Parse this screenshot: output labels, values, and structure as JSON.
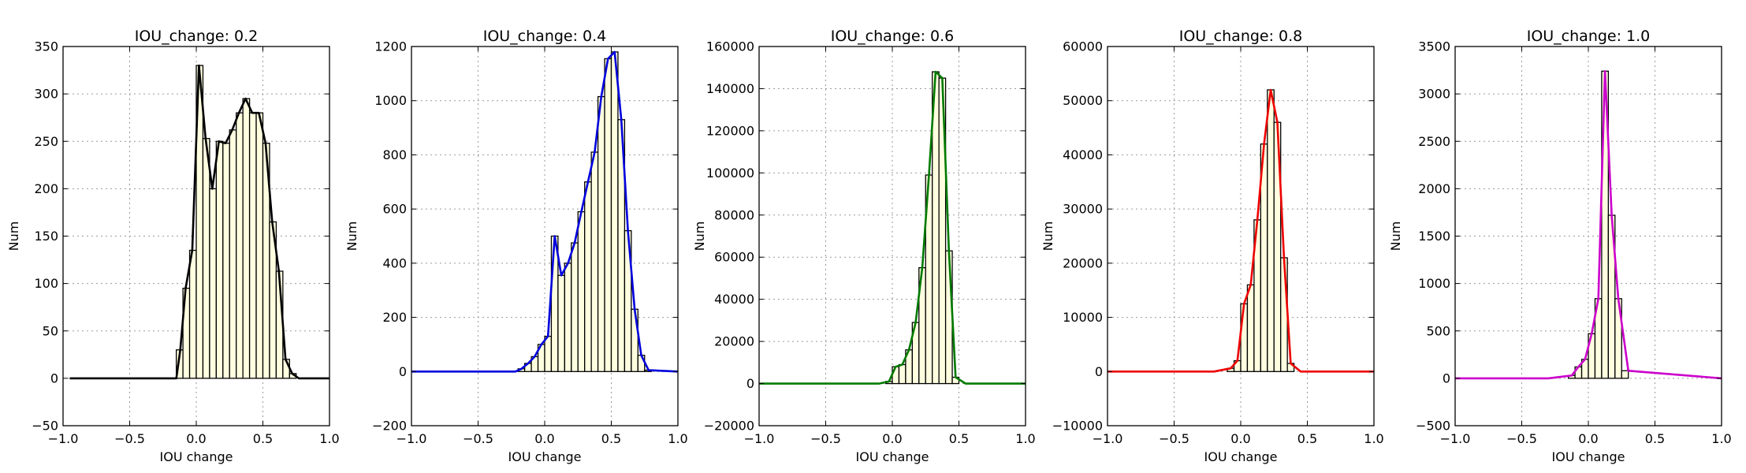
{
  "colors": {
    "bar_fill": "#ffffe0",
    "bar_edge": "#000000",
    "grid": "#9a9a9a"
  },
  "chart_data": [
    {
      "type": "bar",
      "title": "IOU_change: 0.2",
      "xlabel": "IOU change",
      "ylabel": "Num",
      "xlim": [
        -1.0,
        1.0
      ],
      "ylim": [
        -50,
        350
      ],
      "xticks": [
        -1.0,
        -0.5,
        0.0,
        0.5,
        1.0
      ],
      "xtick_labels": [
        "−1.0",
        "−0.5",
        "0.0",
        "0.5",
        "1.0"
      ],
      "yticks": [
        -50,
        0,
        50,
        100,
        150,
        200,
        250,
        300,
        350
      ],
      "ytick_labels": [
        "−50",
        "0",
        "50",
        "100",
        "150",
        "200",
        "250",
        "300",
        "350"
      ],
      "grid": true,
      "line_color": "#000000",
      "bins": {
        "start": -0.15,
        "width": 0.05
      },
      "values": [
        30,
        95,
        135,
        330,
        253,
        200,
        250,
        248,
        262,
        280,
        295,
        280,
        280,
        248,
        165,
        113,
        20,
        5
      ],
      "curve": {
        "x": [
          -0.95,
          -0.15,
          -0.12,
          -0.08,
          -0.03,
          0.02,
          0.07,
          0.12,
          0.17,
          0.22,
          0.27,
          0.32,
          0.37,
          0.42,
          0.47,
          0.52,
          0.57,
          0.62,
          0.67,
          0.72,
          0.77,
          0.82,
          0.87,
          1.0
        ],
        "y": [
          0,
          0,
          30,
          95,
          135,
          330,
          253,
          200,
          250,
          248,
          262,
          280,
          295,
          280,
          280,
          248,
          165,
          113,
          20,
          5,
          0,
          0,
          0,
          0
        ]
      }
    },
    {
      "type": "bar",
      "title": "IOU_change: 0.4",
      "xlabel": "IOU change",
      "ylabel": "Num",
      "xlim": [
        -1.0,
        1.0
      ],
      "ylim": [
        -200,
        1200
      ],
      "xticks": [
        -1.0,
        -0.5,
        0.0,
        0.5,
        1.0
      ],
      "xtick_labels": [
        "−1.0",
        "−0.5",
        "0.0",
        "0.5",
        "1.0"
      ],
      "yticks": [
        -200,
        0,
        200,
        400,
        600,
        800,
        1000,
        1200
      ],
      "ytick_labels": [
        "−200",
        "0",
        "200",
        "400",
        "600",
        "800",
        "1000",
        "1200"
      ],
      "grid": true,
      "line_color": "#0000dd",
      "bins": {
        "start": -0.2,
        "width": 0.05
      },
      "values": [
        10,
        30,
        55,
        100,
        130,
        500,
        355,
        400,
        475,
        590,
        700,
        810,
        1015,
        1155,
        1180,
        930,
        520,
        230,
        60,
        5
      ],
      "curve": {
        "x": [
          -1.0,
          -0.22,
          -0.175,
          -0.125,
          -0.075,
          -0.025,
          0.025,
          0.075,
          0.125,
          0.175,
          0.225,
          0.275,
          0.325,
          0.375,
          0.425,
          0.475,
          0.525,
          0.575,
          0.625,
          0.675,
          0.725,
          0.78,
          1.0
        ],
        "y": [
          0,
          0,
          10,
          30,
          55,
          100,
          130,
          500,
          355,
          400,
          475,
          590,
          700,
          810,
          1015,
          1155,
          1180,
          930,
          520,
          230,
          60,
          5,
          0
        ]
      }
    },
    {
      "type": "bar",
      "title": "IOU_change: 0.6",
      "xlabel": "IOU change",
      "ylabel": "Num",
      "xlim": [
        -1.0,
        1.0
      ],
      "ylim": [
        -20000,
        160000
      ],
      "xticks": [
        -1.0,
        -0.5,
        0.0,
        0.5,
        1.0
      ],
      "xtick_labels": [
        "−1.0",
        "−0.5",
        "0.0",
        "0.5",
        "1.0"
      ],
      "yticks": [
        -20000,
        0,
        20000,
        40000,
        60000,
        80000,
        100000,
        120000,
        140000,
        160000
      ],
      "ytick_labels": [
        "−20000",
        "0",
        "20000",
        "40000",
        "60000",
        "80000",
        "100000",
        "120000",
        "140000",
        "160000"
      ],
      "grid": true,
      "line_color": "#007a00",
      "bins": {
        "start": -0.05,
        "width": 0.05
      },
      "values": [
        1000,
        8000,
        9000,
        16000,
        29000,
        55000,
        99000,
        148000,
        145000,
        63000,
        3000
      ],
      "curve": {
        "x": [
          -1.0,
          -0.1,
          -0.025,
          0.025,
          0.075,
          0.125,
          0.175,
          0.225,
          0.275,
          0.325,
          0.375,
          0.425,
          0.475,
          0.55,
          1.0
        ],
        "y": [
          0,
          0,
          1000,
          8000,
          9000,
          16000,
          29000,
          55000,
          99000,
          148000,
          145000,
          63000,
          3000,
          0,
          0
        ]
      }
    },
    {
      "type": "bar",
      "title": "IOU_change: 0.8",
      "xlabel": "IOU change",
      "ylabel": "Num",
      "xlim": [
        -1.0,
        1.0
      ],
      "ylim": [
        -10000,
        60000
      ],
      "xticks": [
        -1.0,
        -0.5,
        0.0,
        0.5,
        1.0
      ],
      "xtick_labels": [
        "−1.0",
        "−0.5",
        "0.0",
        "0.5",
        "1.0"
      ],
      "yticks": [
        -10000,
        0,
        10000,
        20000,
        30000,
        40000,
        50000,
        60000
      ],
      "ytick_labels": [
        "−10000",
        "0",
        "10000",
        "20000",
        "30000",
        "40000",
        "50000",
        "60000"
      ],
      "grid": true,
      "line_color": "#ee0000",
      "bins": {
        "start": -0.1,
        "width": 0.05
      },
      "values": [
        600,
        2000,
        12500,
        16000,
        28000,
        42000,
        52000,
        46000,
        21000,
        1500
      ],
      "curve": {
        "x": [
          -1.0,
          -0.2,
          -0.075,
          -0.025,
          0.025,
          0.075,
          0.125,
          0.175,
          0.225,
          0.275,
          0.325,
          0.375,
          0.45,
          1.0
        ],
        "y": [
          0,
          0,
          600,
          2000,
          12500,
          16000,
          28000,
          42000,
          52000,
          46000,
          21000,
          1500,
          0,
          0
        ]
      }
    },
    {
      "type": "bar",
      "title": "IOU_change: 1.0",
      "xlabel": "IOU change",
      "ylabel": "Num",
      "xlim": [
        -1.0,
        1.0
      ],
      "ylim": [
        -500,
        3500
      ],
      "xticks": [
        -1.0,
        -0.5,
        0.0,
        0.5,
        1.0
      ],
      "xtick_labels": [
        "−1.0",
        "−0.5",
        "0.0",
        "0.5",
        "1.0"
      ],
      "yticks": [
        -500,
        0,
        500,
        1000,
        1500,
        2000,
        2500,
        3000,
        3500
      ],
      "ytick_labels": [
        "−500",
        "0",
        "500",
        "1000",
        "1500",
        "2000",
        "2500",
        "3000",
        "3500"
      ],
      "grid": true,
      "line_color": "#cc00cc",
      "bins": {
        "start": -0.15,
        "width": 0.05
      },
      "values": [
        30,
        120,
        200,
        470,
        840,
        3240,
        1720,
        840,
        80
      ],
      "curve": {
        "x": [
          -1.0,
          -0.3,
          -0.125,
          -0.075,
          -0.025,
          0.025,
          0.075,
          0.125,
          0.175,
          0.225,
          0.3,
          1.0
        ],
        "y": [
          0,
          0,
          30,
          120,
          200,
          470,
          840,
          3240,
          1720,
          840,
          80,
          0
        ]
      }
    }
  ]
}
